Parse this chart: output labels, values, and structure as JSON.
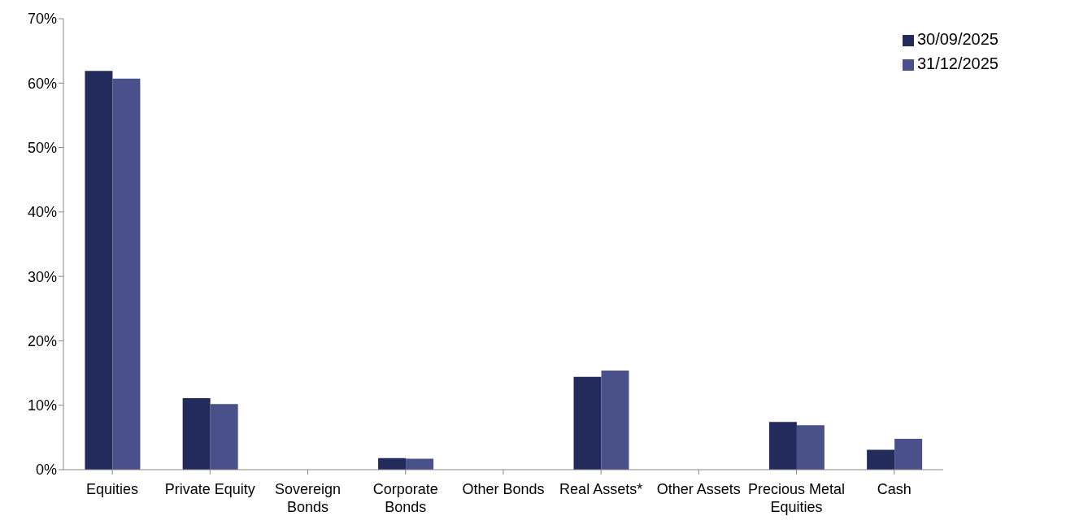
{
  "chart_data": {
    "type": "bar",
    "categories": [
      "Equities",
      "Private Equity",
      "Sovereign Bonds",
      "Corporate Bonds",
      "Other Bonds",
      "Real Assets*",
      "Other Assets",
      "Precious Metal Equities",
      "Cash"
    ],
    "series": [
      {
        "name": "30/09/2025",
        "color": "#232a5c",
        "values": [
          61.9,
          11.1,
          0,
          1.8,
          0,
          14.4,
          0,
          7.4,
          3.1
        ]
      },
      {
        "name": "31/12/2025",
        "color": "#4a5089",
        "values": [
          60.7,
          10.2,
          0,
          1.7,
          0,
          15.4,
          0,
          6.9,
          4.8
        ]
      }
    ],
    "ylim": [
      0,
      70
    ],
    "yticks": [
      {
        "value": 0,
        "label": "0%"
      },
      {
        "value": 10,
        "label": "10%"
      },
      {
        "value": 20,
        "label": "20%"
      },
      {
        "value": 30,
        "label": "30%"
      },
      {
        "value": 40,
        "label": "40%"
      },
      {
        "value": 50,
        "label": "50%"
      },
      {
        "value": 60,
        "label": "60%"
      },
      {
        "value": 70,
        "label": "70%"
      }
    ],
    "grid": false,
    "legend": "top right"
  }
}
